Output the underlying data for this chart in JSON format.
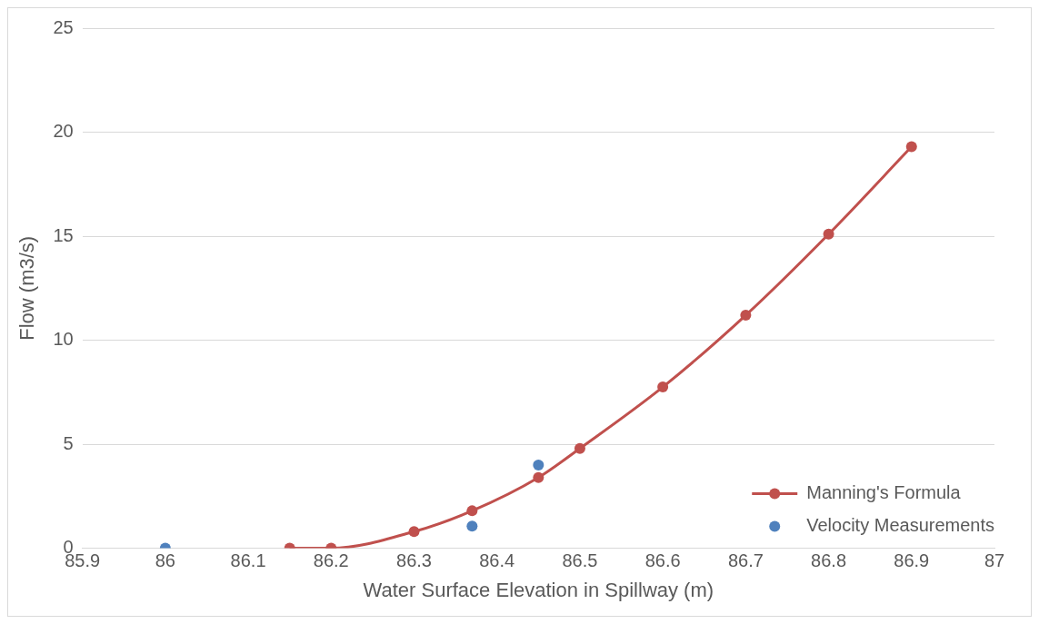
{
  "chart_data": {
    "type": "line",
    "xlabel": "Water Surface Elevation in Spillway (m)",
    "ylabel": "Flow (m3/s)",
    "xlim": [
      85.9,
      87
    ],
    "xticks": [
      85.9,
      86,
      86.1,
      86.2,
      86.3,
      86.4,
      86.5,
      86.6,
      86.7,
      86.8,
      86.9,
      87
    ],
    "ylim": [
      0,
      25
    ],
    "yticks": [
      0,
      5,
      10,
      15,
      20,
      25
    ],
    "grid": "y",
    "legend": "bottom right",
    "marker": "circle",
    "series": [
      {
        "name": "Manning's Formula",
        "color": "#c0504d",
        "x": [
          86.15,
          86.2,
          86.3,
          86.37,
          86.45,
          86.5,
          86.6,
          86.7,
          86.8,
          86.9
        ],
        "values": [
          0,
          0,
          0.8,
          1.8,
          3.4,
          4.8,
          7.75,
          11.2,
          15.1,
          19.3
        ]
      },
      {
        "name": "Velocity Measurements",
        "type": "scatter",
        "color": "#4f81bd",
        "x": [
          86,
          86.37,
          86.45
        ],
        "values": [
          0,
          1.06,
          4.0
        ]
      }
    ]
  }
}
